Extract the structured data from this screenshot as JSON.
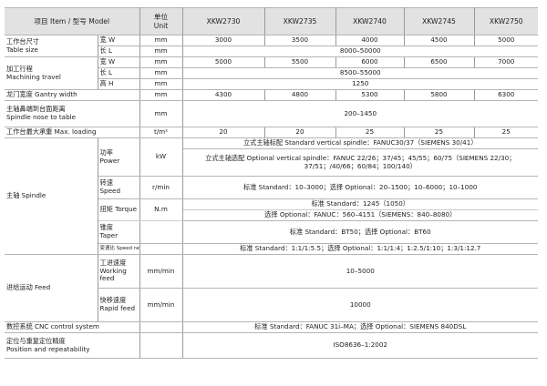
{
  "header": {
    "item": "项目 Item / 型号 Model",
    "unit_cn": "单位",
    "unit_en": "Unit",
    "models": [
      "XKW2730",
      "XKW2735",
      "XKW2740",
      "XKW2745",
      "XKW2750"
    ]
  },
  "table_size": {
    "label_cn": "工作台尺寸",
    "label_en": "Table size",
    "w_label": "宽 W",
    "l_label": "长 L",
    "unit": "mm",
    "w_values": [
      "3000",
      "3500",
      "4000",
      "4500",
      "5000"
    ],
    "l_value": "8000–50000"
  },
  "machining": {
    "label_cn": "加工行程",
    "label_en": "Machining travel",
    "w_label": "宽 W",
    "l_label": "长 L",
    "h_label": "高 H",
    "unit": "mm",
    "w_values": [
      "5000",
      "5500",
      "6000",
      "6500",
      "7000"
    ],
    "l_value": "8500–55000",
    "h_value": "1250"
  },
  "gantry": {
    "label": "龙门宽度 Gantry width",
    "unit": "mm",
    "values": [
      "4300",
      "4800",
      "5300",
      "5800",
      "6300"
    ]
  },
  "nose": {
    "label_cn": "主轴鼻端到台面距离",
    "label_en": "Spindle nose to table",
    "unit": "mm",
    "value": "200–1450"
  },
  "loading": {
    "label": "工作台最大承重 Max. loading",
    "unit": "t/m²",
    "values": [
      "20",
      "20",
      "25",
      "25",
      "25"
    ]
  },
  "spindle": {
    "label": "主轴 Spindle",
    "power": {
      "label_cn": "功率",
      "label_en": "Power",
      "unit": "kW",
      "standard": "立式主轴标配 Standard vertical spindle：FANUC30/37（SIEMENS 30/41）",
      "optional": "立式主轴选配 Optional vertical spindle：FANUC 22/26；37/45；45/55；60/75（SIEMENS 22/30；37/51；/40/66；60/84；100/140）"
    },
    "speed": {
      "label_cn": "转速",
      "label_en": "Speed",
      "unit": "r/min",
      "value": "标准 Standard：10–3000；选择 Optional：20–1500；10–6000；10–1000"
    },
    "torque": {
      "label": "扭矩 Torque",
      "unit": "N.m",
      "standard": "标准 Standard：1245（1050）",
      "optional": "选择 Optional：FANUC：560–4151（SIEMENS：840–8080）"
    },
    "taper": {
      "label_cn": "锥度",
      "label_en": "Taper",
      "value": "标准 Standard：BT50；选择 Optional：BT60"
    },
    "ratio": {
      "label": "变速比 Speed ratio",
      "value": "标准 Standard：1:1/1:5.5；选择 Optional：1:1/1:4；1:2.5/1:10；1:3/1:12.7"
    }
  },
  "feed": {
    "label": "进给运动 Feed",
    "working": {
      "label_cn": "工进速度",
      "label_en": "Working feed",
      "unit": "mm/min",
      "value": "10–5000"
    },
    "rapid": {
      "label_cn": "快移速度",
      "label_en": "Rapid feed",
      "unit": "mm/min",
      "value": "10000"
    }
  },
  "cnc": {
    "label": "数控系统 CNC control system",
    "value": "标准 Standard：FANUC 31i–MA；选择 Optional：SIEMENS 840DSL"
  },
  "position": {
    "label_cn": "定位与重复定位精度",
    "label_en": "Position and repeatability",
    "value": "ISO8636–1:2002"
  }
}
